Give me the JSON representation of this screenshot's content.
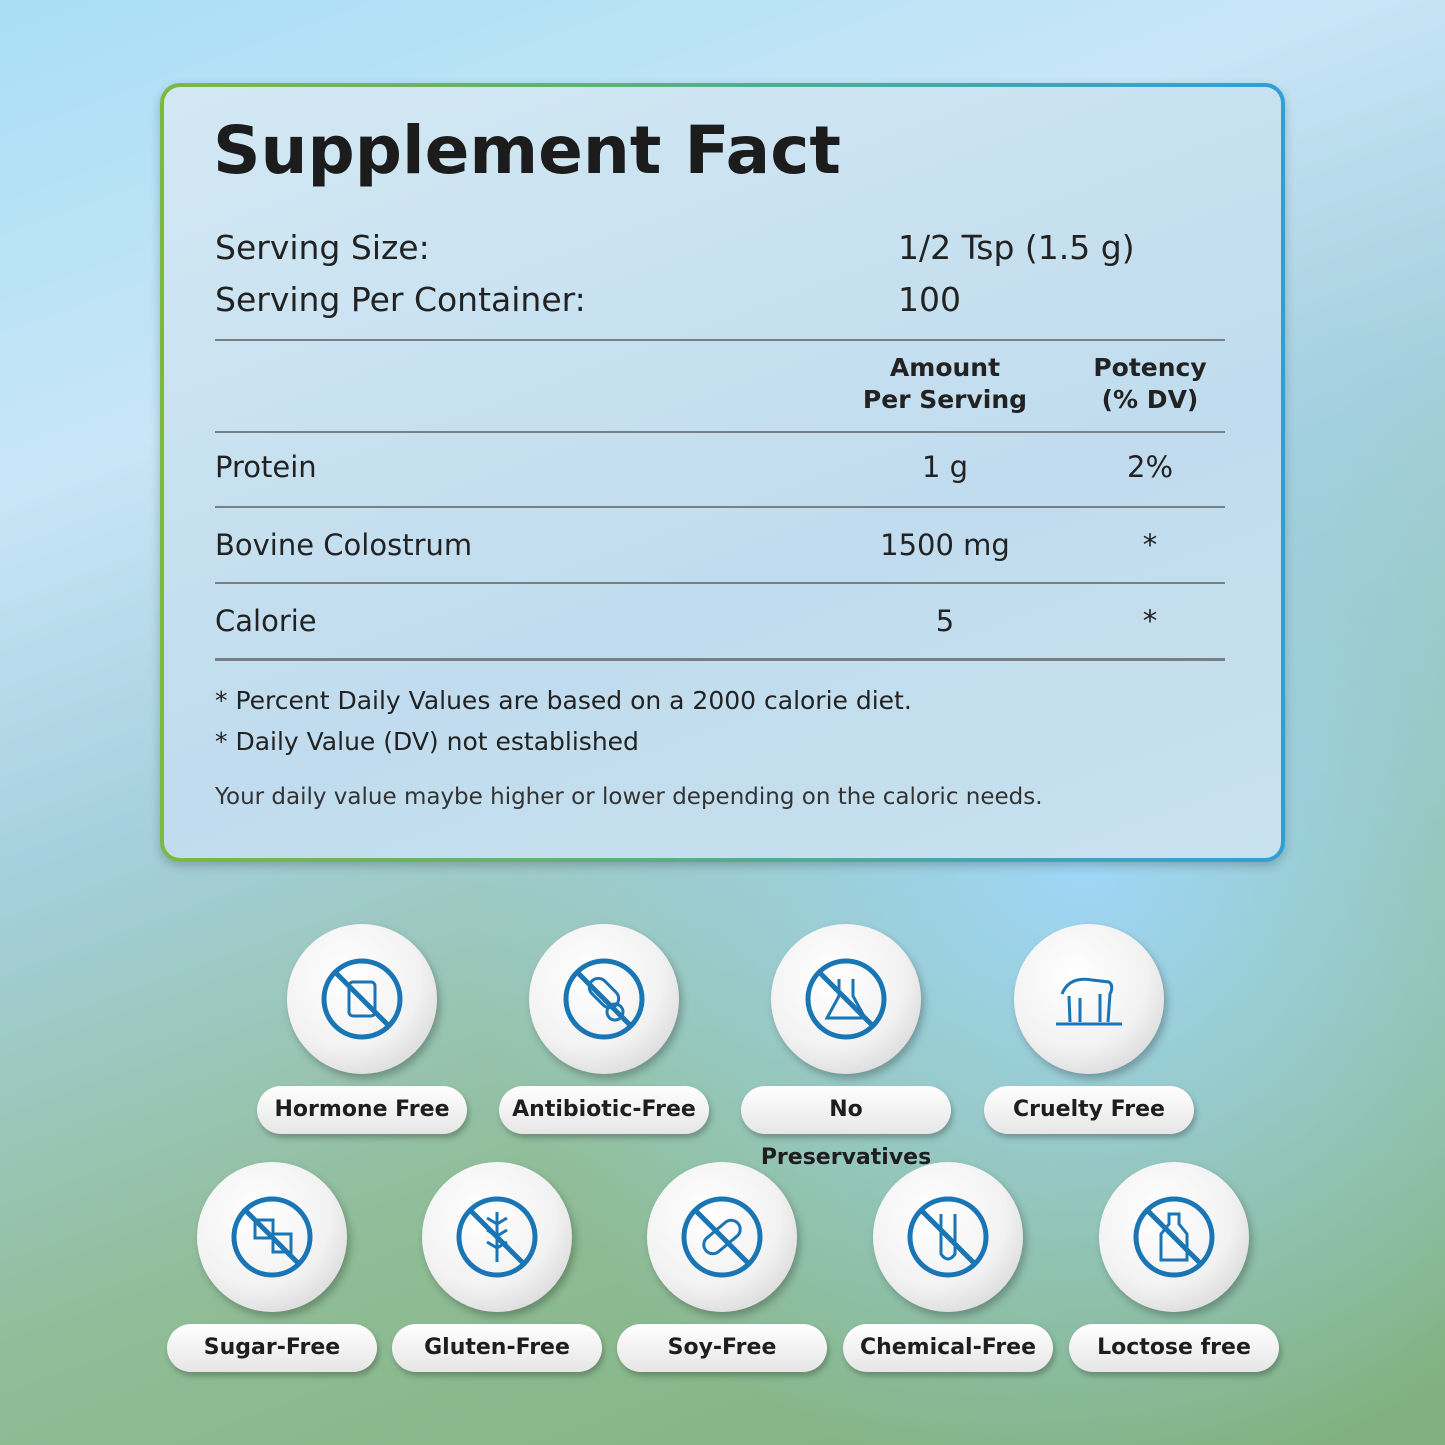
{
  "title": "Supplement Fact",
  "serving": [
    {
      "label": "Serving Size:",
      "value": "1/2 Tsp (1.5 g)"
    },
    {
      "label": "Serving Per Container:",
      "value": "100"
    }
  ],
  "table": {
    "headers": [
      "Amount\nPer Serving",
      "Potency\n(% DV)"
    ],
    "rows": [
      [
        "Protein",
        "1 g",
        "2%"
      ],
      [
        "Bovine Colostrum",
        "1500 mg",
        "*"
      ],
      [
        "Calorie",
        "5",
        "*"
      ]
    ]
  },
  "footnotes": [
    "* Percent Daily Values are based on a 2000 calorie diet.",
    "* Daily Value (DV) not established"
  ],
  "note": "Your daily value maybe higher or lower depending on the caloric needs.",
  "badges": [
    "Hormone Free",
    "Antibiotic-Free",
    "No Preservatives",
    "Cruelty Free",
    "Sugar-Free",
    "Gluten-Free",
    "Soy-Free",
    "Chemical-Free",
    "Loctose free"
  ]
}
